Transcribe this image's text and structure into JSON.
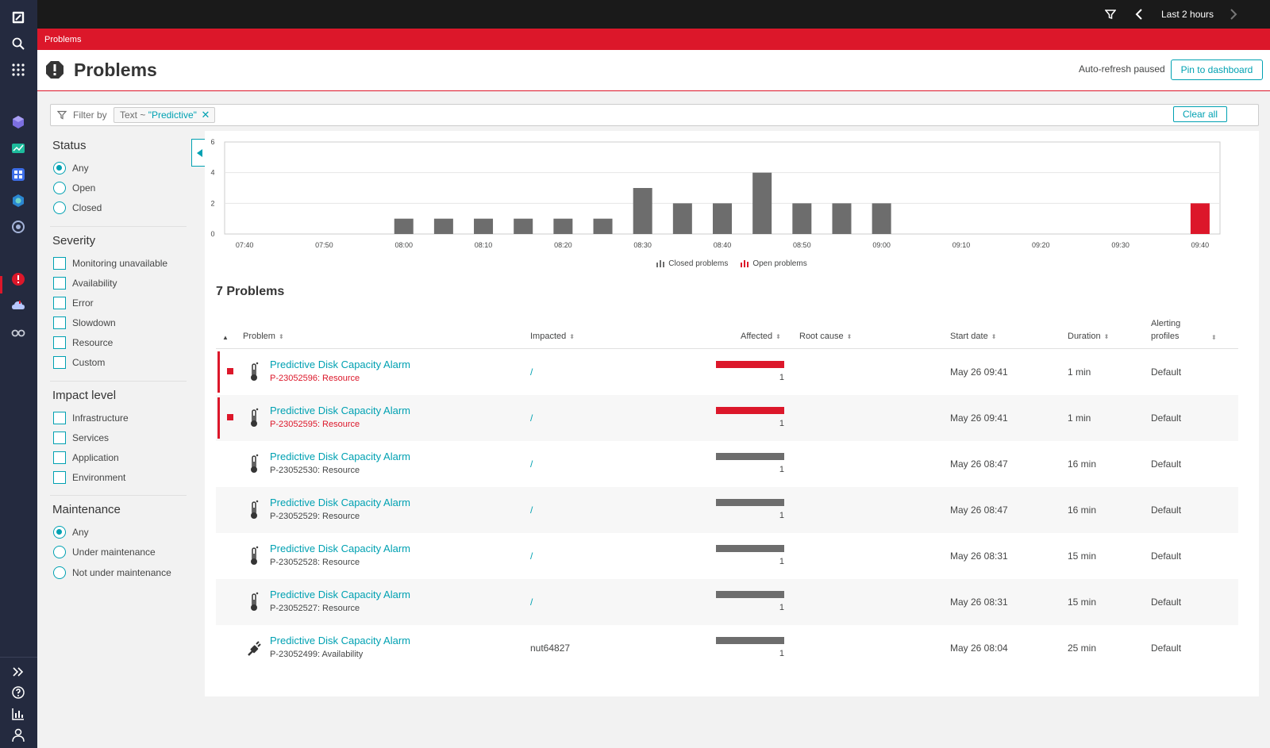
{
  "topbar": {
    "timeframe": "Last 2 hours"
  },
  "breadcrumb": {
    "label": "Problems"
  },
  "header": {
    "title": "Problems",
    "auto_refresh": "Auto-refresh paused",
    "pin_label": "Pin to dashboard"
  },
  "filter": {
    "label": "Filter by",
    "chip_key": "Text ~ ",
    "chip_value": "\"Predictive\"",
    "clear_label": "Clear all"
  },
  "sidebar": {
    "status": {
      "title": "Status",
      "options": [
        "Any",
        "Open",
        "Closed"
      ],
      "selected": "Any"
    },
    "severity": {
      "title": "Severity",
      "options": [
        "Monitoring unavailable",
        "Availability",
        "Error",
        "Slowdown",
        "Resource",
        "Custom"
      ]
    },
    "impact": {
      "title": "Impact level",
      "options": [
        "Infrastructure",
        "Services",
        "Application",
        "Environment"
      ]
    },
    "maintenance": {
      "title": "Maintenance",
      "options": [
        "Any",
        "Under maintenance",
        "Not under maintenance"
      ],
      "selected": "Any"
    }
  },
  "colors": {
    "accent": "#00a1b2",
    "open": "#dc172a",
    "closed": "#6d6d6d"
  },
  "chart_data": {
    "type": "bar",
    "categories": [
      "07:40",
      "07:45",
      "07:50",
      "07:55",
      "08:00",
      "08:05",
      "08:10",
      "08:15",
      "08:20",
      "08:25",
      "08:30",
      "08:35",
      "08:40",
      "08:45",
      "08:50",
      "08:55",
      "09:00",
      "09:05",
      "09:10",
      "09:15",
      "09:20",
      "09:25",
      "09:30",
      "09:35",
      "09:40"
    ],
    "xticks": [
      "07:40",
      "07:50",
      "08:00",
      "08:10",
      "08:20",
      "08:30",
      "08:40",
      "08:50",
      "09:00",
      "09:10",
      "09:20",
      "09:30",
      "09:40"
    ],
    "series": [
      {
        "name": "Closed problems",
        "color": "#6d6d6d",
        "values": [
          0,
          0,
          0,
          0,
          1,
          1,
          1,
          1,
          1,
          1,
          3,
          2,
          2,
          4,
          2,
          2,
          2,
          0,
          0,
          0,
          0,
          0,
          0,
          0,
          0
        ]
      },
      {
        "name": "Open problems",
        "color": "#dc172a",
        "values": [
          0,
          0,
          0,
          0,
          0,
          0,
          0,
          0,
          0,
          0,
          0,
          0,
          0,
          0,
          0,
          0,
          0,
          0,
          0,
          0,
          0,
          0,
          0,
          0,
          2
        ]
      }
    ],
    "ylim": [
      0,
      6
    ],
    "yticks": [
      "0",
      "2",
      "4",
      "6"
    ],
    "grid": true,
    "legend": "bottom-center"
  },
  "list": {
    "count_label": "7 Problems",
    "columns": {
      "problem": "Problem",
      "impacted": "Impacted",
      "affected": "Affected",
      "root_cause": "Root cause",
      "start_date": "Start date",
      "duration": "Duration",
      "alerting1": "Alerting",
      "alerting2": "profiles"
    },
    "rows": [
      {
        "name": "Predictive Disk Capacity Alarm",
        "id": "P-23052596: Resource",
        "open": true,
        "icon": "thermometer-icon",
        "impacted": "/",
        "affected": "1",
        "start": "May 26 09:41",
        "duration": "1 min",
        "profile": "Default"
      },
      {
        "name": "Predictive Disk Capacity Alarm",
        "id": "P-23052595: Resource",
        "open": true,
        "icon": "thermometer-icon",
        "impacted": "/",
        "affected": "1",
        "start": "May 26 09:41",
        "duration": "1 min",
        "profile": "Default"
      },
      {
        "name": "Predictive Disk Capacity Alarm",
        "id": "P-23052530: Resource",
        "open": false,
        "icon": "thermometer-icon",
        "impacted": "/",
        "affected": "1",
        "start": "May 26 08:47",
        "duration": "16 min",
        "profile": "Default"
      },
      {
        "name": "Predictive Disk Capacity Alarm",
        "id": "P-23052529: Resource",
        "open": false,
        "icon": "thermometer-icon",
        "impacted": "/",
        "affected": "1",
        "start": "May 26 08:47",
        "duration": "16 min",
        "profile": "Default"
      },
      {
        "name": "Predictive Disk Capacity Alarm",
        "id": "P-23052528: Resource",
        "open": false,
        "icon": "thermometer-icon",
        "impacted": "/",
        "affected": "1",
        "start": "May 26 08:31",
        "duration": "15 min",
        "profile": "Default"
      },
      {
        "name": "Predictive Disk Capacity Alarm",
        "id": "P-23052527: Resource",
        "open": false,
        "icon": "thermometer-icon",
        "impacted": "/",
        "affected": "1",
        "start": "May 26 08:31",
        "duration": "15 min",
        "profile": "Default"
      },
      {
        "name": "Predictive Disk Capacity Alarm",
        "id": "P-23052499: Availability",
        "open": false,
        "icon": "unplugged-icon",
        "impacted": "nut64827",
        "affected": "1",
        "start": "May 26 08:04",
        "duration": "25 min",
        "profile": "Default"
      }
    ]
  }
}
